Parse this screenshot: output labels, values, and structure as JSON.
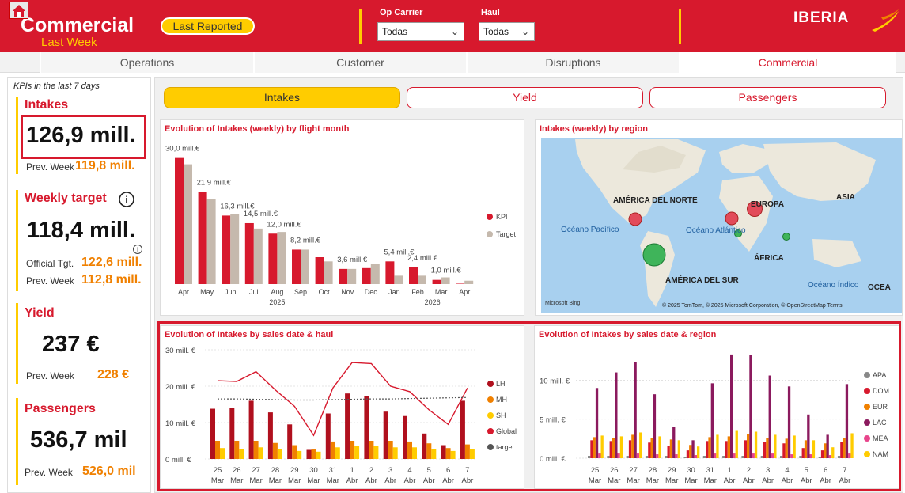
{
  "header": {
    "title": "Commercial",
    "subtitle": "Last Week",
    "last_reported_label": "Last Reported",
    "op_carrier": {
      "label": "Op Carrier",
      "value": "Todas"
    },
    "haul": {
      "label": "Haul",
      "value": "Todas"
    },
    "logo_text": "IBERIA"
  },
  "colors": {
    "brand_red": "#d7192d",
    "brand_yellow": "#ffcc00",
    "orange": "#f08000"
  },
  "nav": {
    "tabs": [
      "Operations",
      "Customer",
      "Disruptions",
      "Commercial"
    ],
    "active": "Commercial"
  },
  "kpis": {
    "caption": "KPIs in the last 7 days",
    "intakes": {
      "title": "Intakes",
      "value": "126,9 mill.",
      "prev_label": "Prev. Week",
      "prev_value": "119,8 mill."
    },
    "weekly_target": {
      "title": "Weekly target",
      "value": "118,4 mill.",
      "official_label": "Official Tgt.",
      "official_value": "122,6 mill.",
      "prev_label": "Prev. Week",
      "prev_value": "112,8 mill."
    },
    "yield": {
      "title": "Yield",
      "value": "237 €",
      "prev_label": "Prev. Week",
      "prev_value": "228 €"
    },
    "passengers": {
      "title": "Passengers",
      "value": "536,7 mil",
      "prev_label": "Prev. Week",
      "prev_value": "526,0 mil"
    }
  },
  "page_tabs": [
    "Intakes",
    "Yield",
    "Passengers"
  ],
  "page_tab_active": "Intakes",
  "map": {
    "title": "Intakes (weekly) by region",
    "labels": [
      "AMÉRICA DEL NORTE",
      "EUROPA",
      "ASIA",
      "Océano Pacífico",
      "Océano Atlántico",
      "ÁFRICA",
      "AMÉRICA DEL SUR",
      "Océano Índico",
      "OCEA"
    ],
    "attribution": "© 2025 TomTom, © 2025 Microsoft Corporation, © OpenStreetMap  Terms",
    "bing": "Microsoft Bing"
  },
  "chart_data": [
    {
      "type": "bar",
      "title": "Evolution of Intakes (weekly) by flight month",
      "categories": [
        "Apr",
        "May",
        "Jun",
        "Jul",
        "Aug",
        "Sep",
        "Oct",
        "Nov",
        "Dec",
        "Jan",
        "Feb",
        "Mar",
        "Apr"
      ],
      "year_labels": [
        "2025",
        "2026"
      ],
      "series": [
        {
          "name": "KPI",
          "color": "#d7192d",
          "values": [
            30.0,
            21.9,
            16.3,
            14.5,
            12.0,
            8.2,
            6.4,
            3.6,
            3.8,
            5.4,
            4.0,
            1.0,
            0.1
          ]
        },
        {
          "name": "Target",
          "color": "#c5b9ad",
          "values": [
            28.5,
            20.3,
            16.7,
            13.2,
            12.4,
            8.2,
            5.4,
            3.6,
            4.8,
            2.0,
            2.0,
            1.6,
            0.8
          ]
        }
      ],
      "data_labels": [
        "30,0 mill.€",
        "21,9 mill.€",
        "16,3 mill.€",
        "14,5 mill.€",
        "12,0 mill.€",
        "8,2 mill.€",
        "3,6 mill.€",
        "5,4 mill.€",
        "2,4 mill.€",
        "1,0 mill.€"
      ],
      "ylim": [
        0,
        32
      ]
    },
    {
      "type": "bar",
      "title": "Evolution of Intakes by sales date & haul",
      "categories": [
        "25 Mar",
        "26 Mar",
        "27 Mar",
        "28 Mar",
        "29 Mar",
        "30 Mar",
        "31 Mar",
        "1 Abr",
        "2 Abr",
        "3 Abr",
        "4 Abr",
        "5 Abr",
        "6 Abr",
        "7 Abr"
      ],
      "y_ticks": [
        "0 mill. €",
        "10 mill. €",
        "20 mill. €",
        "30 mill. €"
      ],
      "ylim": [
        0,
        30
      ],
      "series": [
        {
          "name": "LH",
          "color": "#b0101e",
          "values": [
            13.8,
            14.0,
            16.0,
            12.8,
            9.5,
            2.5,
            12.5,
            18.0,
            17.2,
            13.0,
            11.8,
            7.0,
            3.8,
            16.0
          ]
        },
        {
          "name": "MH",
          "color": "#f08000",
          "values": [
            5.0,
            5.0,
            5.0,
            4.4,
            3.8,
            2.6,
            4.8,
            5.0,
            5.0,
            5.0,
            4.8,
            4.3,
            3.0,
            4.0
          ]
        },
        {
          "name": "SH",
          "color": "#ffcc00",
          "values": [
            3.0,
            2.8,
            3.2,
            2.8,
            2.2,
            2.0,
            3.2,
            3.5,
            3.5,
            3.2,
            3.2,
            2.8,
            2.2,
            2.8
          ]
        },
        {
          "name": "Global",
          "color": "#d7192d",
          "values": [
            21.5,
            21.3,
            24.0,
            19.0,
            14.5,
            6.5,
            19.5,
            26.5,
            26.2,
            20.0,
            18.5,
            13.5,
            9.5,
            19.5
          ]
        },
        {
          "name": "target",
          "color": "#555555",
          "values": [
            16.5,
            16.5,
            16.4,
            16.3,
            16.2,
            16.2,
            16.3,
            16.4,
            16.5,
            16.5,
            16.6,
            16.7,
            16.8,
            16.9
          ]
        }
      ]
    },
    {
      "type": "bar",
      "title": "Evolution of Intakes by sales date & region",
      "categories": [
        "25 Mar",
        "26 Mar",
        "27 Mar",
        "28 Mar",
        "29 Mar",
        "30 Mar",
        "31 Mar",
        "1 Abr",
        "2 Abr",
        "3 Abr",
        "4 Abr",
        "5 Abr",
        "6 Abr",
        "7 Abr"
      ],
      "y_ticks": [
        "0 mill. €",
        "5 mill. €",
        "10 mill. €"
      ],
      "ylim": [
        0,
        14
      ],
      "series": [
        {
          "name": "APA",
          "color": "#888888",
          "values": [
            0.3,
            0.3,
            0.3,
            0.3,
            0.3,
            0.2,
            0.3,
            0.3,
            0.3,
            0.3,
            0.3,
            0.3,
            0.2,
            0.3
          ]
        },
        {
          "name": "DOM",
          "color": "#d7192d",
          "values": [
            2.3,
            2.2,
            2.3,
            2.0,
            1.6,
            1.0,
            2.2,
            2.2,
            2.3,
            2.1,
            1.9,
            1.3,
            1.0,
            2.1
          ]
        },
        {
          "name": "EUR",
          "color": "#f08000",
          "values": [
            2.7,
            2.6,
            3.0,
            2.6,
            2.4,
            1.7,
            2.7,
            2.8,
            3.1,
            2.6,
            2.5,
            2.3,
            1.9,
            2.6
          ]
        },
        {
          "name": "LAC",
          "color": "#8b1a5e",
          "values": [
            9.0,
            11.0,
            12.3,
            8.2,
            4.0,
            2.3,
            9.6,
            13.3,
            13.2,
            10.6,
            9.2,
            5.6,
            3.0,
            9.5
          ]
        },
        {
          "name": "MEA",
          "color": "#e8458b",
          "values": [
            0.6,
            0.6,
            0.6,
            0.5,
            0.5,
            0.4,
            0.6,
            0.6,
            0.6,
            0.6,
            0.5,
            0.5,
            0.4,
            0.6
          ]
        },
        {
          "name": "NAM",
          "color": "#ffcc00",
          "values": [
            2.9,
            2.8,
            3.3,
            2.8,
            2.3,
            1.5,
            3.0,
            3.5,
            3.4,
            3.0,
            2.9,
            2.3,
            1.4,
            3.2
          ]
        }
      ]
    }
  ]
}
